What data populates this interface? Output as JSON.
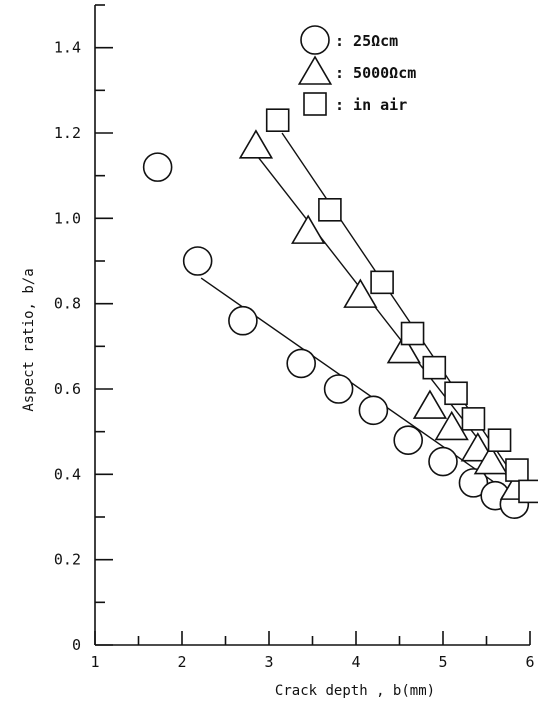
{
  "chart_data": {
    "type": "scatter",
    "xlabel": "Crack depth , b(mm)",
    "ylabel": "Aspect ratio, b/a",
    "xlim": [
      1,
      6
    ],
    "ylim": [
      0,
      1.5
    ],
    "x_ticks": [
      "1",
      "2",
      "3",
      "4",
      "5",
      "6"
    ],
    "y_ticks": [
      "0",
      "0.2",
      "0.4",
      "0.6",
      "0.8",
      "1.0",
      "1.2",
      "1.4"
    ],
    "grid": false,
    "legend_position": "top-right",
    "series": [
      {
        "name": ": 25Ωcm",
        "marker": "circle",
        "points": [
          [
            1.72,
            1.12
          ],
          [
            2.18,
            0.9
          ],
          [
            2.7,
            0.76
          ],
          [
            3.37,
            0.66
          ],
          [
            3.8,
            0.6
          ],
          [
            4.2,
            0.55
          ],
          [
            4.6,
            0.48
          ],
          [
            5.0,
            0.43
          ],
          [
            5.35,
            0.38
          ],
          [
            5.6,
            0.35
          ],
          [
            5.82,
            0.33
          ]
        ],
        "fit_line": [
          [
            2.22,
            0.86
          ],
          [
            5.88,
            0.34
          ]
        ]
      },
      {
        "name": ": 5000Ωcm",
        "marker": "triangle",
        "points": [
          [
            2.85,
            1.17
          ],
          [
            3.45,
            0.97
          ],
          [
            4.05,
            0.82
          ],
          [
            4.55,
            0.69
          ],
          [
            4.85,
            0.56
          ],
          [
            5.1,
            0.51
          ],
          [
            5.4,
            0.46
          ],
          [
            5.55,
            0.43
          ],
          [
            5.85,
            0.37
          ]
        ],
        "fit_line": [
          [
            2.85,
            1.15
          ],
          [
            5.95,
            0.34
          ]
        ]
      },
      {
        "name": ": in air",
        "marker": "square",
        "points": [
          [
            3.1,
            1.23
          ],
          [
            3.7,
            1.02
          ],
          [
            4.3,
            0.85
          ],
          [
            4.65,
            0.73
          ],
          [
            4.9,
            0.65
          ],
          [
            5.15,
            0.59
          ],
          [
            5.35,
            0.53
          ],
          [
            5.65,
            0.48
          ],
          [
            5.85,
            0.41
          ],
          [
            6.0,
            0.36
          ]
        ],
        "fit_line": [
          [
            3.15,
            1.2
          ],
          [
            6.0,
            0.34
          ]
        ]
      }
    ]
  }
}
